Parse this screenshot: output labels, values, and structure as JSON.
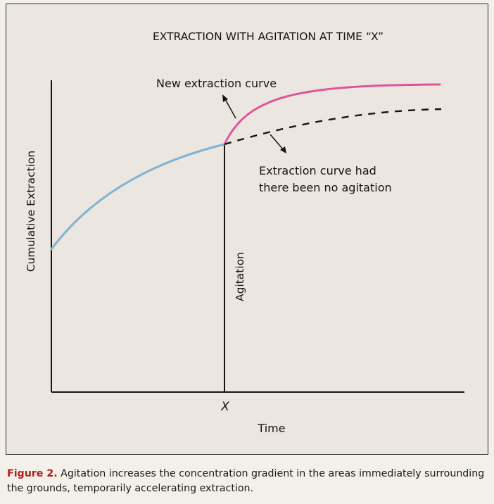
{
  "diagram": {
    "title": "EXTRACTION WITH AGITATION AT TIME “X”",
    "y_axis_label": "Cumulative Extraction",
    "x_axis_label": "Time",
    "x_marker_label": "X",
    "agitation_label": "Agitation",
    "new_curve_label": "New extraction curve",
    "old_curve_label_line1": "Extraction curve had",
    "old_curve_label_line2": "there been no agitation",
    "colors": {
      "pre_agitation_curve": "#7eb3d4",
      "new_extraction_curve": "#e0559a",
      "no_agitation_curve": "#161412",
      "axis": "#161412",
      "caption_label": "#b51e1e"
    }
  },
  "caption": {
    "label": "Figure 2.",
    "text": "Agitation increases the concentration gradient in the areas immediately surrounding the grounds, temporarily accelerating extraction."
  }
}
